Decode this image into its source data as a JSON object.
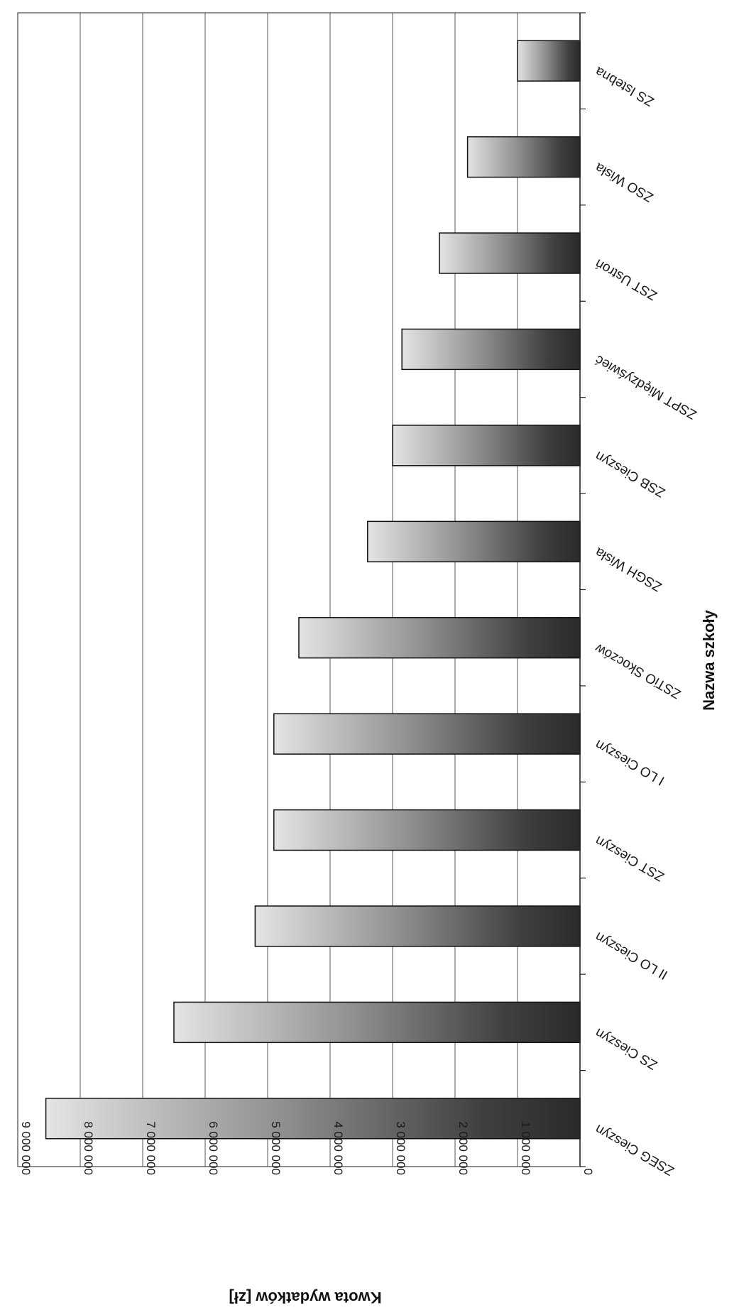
{
  "chart_data": {
    "type": "bar",
    "orientation": "horizontal",
    "rotation": "page rotated 90deg clockwise (scanned)",
    "xlabel": "Nazwa szkoły",
    "ylabel": "Kwota wydatków [zł]",
    "ylim": [
      0,
      9000000
    ],
    "yticks": [
      0,
      1000000,
      2000000,
      3000000,
      4000000,
      5000000,
      6000000,
      7000000,
      8000000,
      9000000
    ],
    "ytick_labels": [
      "0",
      "1 000 000",
      "2 000 000",
      "3 000 000",
      "4 000 000",
      "5 000 000",
      "6 000 000",
      "7 000 000",
      "8 000 000",
      "9 000 000"
    ],
    "grid": true,
    "legend": "none",
    "categories": [
      "ZSEG Cieszyn",
      "ZS Cieszyn",
      "II LO Cieszyn",
      "ZST Cieszyn",
      "I LO Cieszyn",
      "ZSTiO Skoczów",
      "ZSGH Wisła",
      "ZSB Cieszyn",
      "ZSPT Międzyświeć",
      "ZST Ustroń",
      "ZSO Wisła",
      "ZS Istebna"
    ],
    "values": [
      8550000,
      6500000,
      5200000,
      4900000,
      4900000,
      4500000,
      3400000,
      3000000,
      2850000,
      2250000,
      1800000,
      1000000
    ],
    "bar_color": "#6a6a6a"
  }
}
